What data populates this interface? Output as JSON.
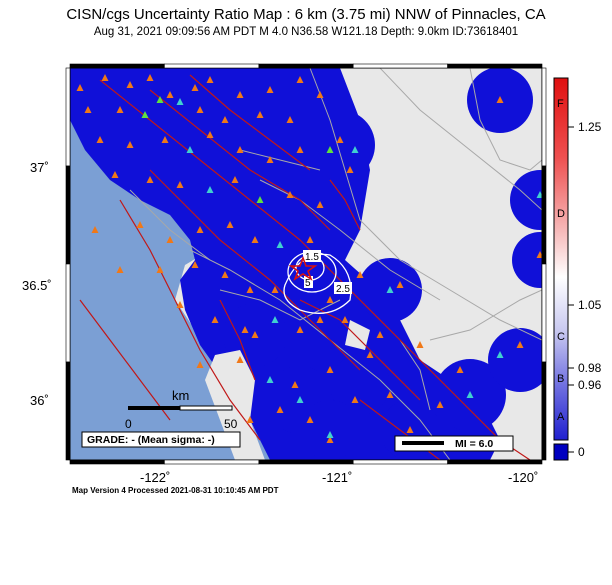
{
  "title": "CISN/cgs Uncertainty Ratio Map : 6 km (3.75 mi) NNW of Pinnacles, CA",
  "subtitle": "Aug 31, 2021 09:09:56 AM PDT   M 4.0   N36.58 W121.18   Depth: 9.0km   ID:73618401",
  "axes": {
    "lat_ticks": [
      "37˚",
      "36.5˚",
      "36˚"
    ],
    "lon_ticks": [
      "-122˚",
      "-121˚",
      "-120˚"
    ]
  },
  "scale_bar": {
    "unit": "km",
    "labels": [
      "0",
      "50"
    ]
  },
  "grade_box": "GRADE: - (Mean sigma: -)",
  "mi_legend": "MI = 6.0",
  "contour_labels": [
    "1.5",
    "2.5",
    "5"
  ],
  "colorbar": {
    "letters": [
      "F",
      "D",
      "C",
      "B",
      "A"
    ],
    "values": [
      "1.25",
      "1.05",
      "0.98",
      "0.96",
      "0"
    ]
  },
  "footer": "Map Version 4 Processed 2021-08-31 10:10:45 AM PDT",
  "colors": {
    "ocean": "#7b9fd4",
    "land": "#e8e8e8",
    "uncertainty_blue": "#1010d8",
    "fault": "#c01818",
    "station_orange": "#f07818",
    "station_cyan": "#40d0d0",
    "station_green": "#60e040",
    "epicenter": "#d81010"
  }
}
